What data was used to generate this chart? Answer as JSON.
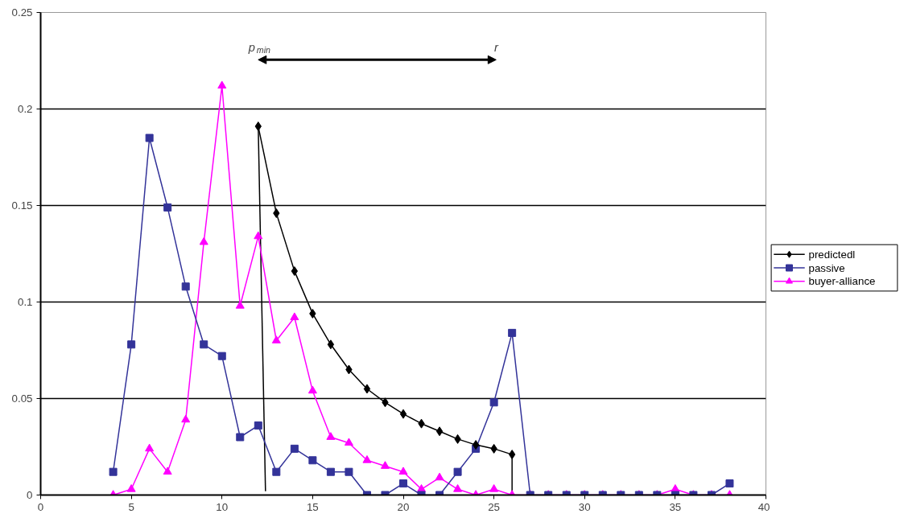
{
  "chart_data": {
    "type": "line",
    "xlim": [
      0,
      40
    ],
    "xticks": [
      0,
      5,
      10,
      15,
      20,
      25,
      30,
      35,
      40
    ],
    "ylim": [
      0,
      0.25
    ],
    "yticks": [
      0,
      0.05,
      0.1,
      0.15,
      0.2,
      0.25
    ],
    "grid": "y",
    "legend": "right",
    "series": [
      {
        "name": "predictedl",
        "color": "#000000",
        "marker": "diamond",
        "x": [
          12,
          13,
          14,
          15,
          16,
          17,
          18,
          19,
          20,
          21,
          22,
          23,
          24,
          25,
          26
        ],
        "values": [
          0.191,
          0.146,
          0.116,
          0.094,
          0.078,
          0.065,
          0.055,
          0.048,
          0.042,
          0.037,
          0.033,
          0.029,
          0.026,
          0.024,
          0.021
        ]
      },
      {
        "name": "passive",
        "color": "#333399",
        "marker": "square",
        "x": [
          4,
          5,
          6,
          7,
          8,
          9,
          10,
          11,
          12,
          13,
          14,
          15,
          16,
          17,
          18,
          19,
          20,
          21,
          22,
          23,
          24,
          25,
          26,
          27,
          28,
          29,
          30,
          31,
          32,
          33,
          34,
          35,
          36,
          37,
          38
        ],
        "values": [
          0.012,
          0.078,
          0.185,
          0.149,
          0.108,
          0.078,
          0.072,
          0.03,
          0.036,
          0.012,
          0.024,
          0.018,
          0.012,
          0.012,
          0,
          0,
          0.006,
          0,
          0,
          0.012,
          0.024,
          0.048,
          0.084,
          0,
          0,
          0,
          0,
          0,
          0,
          0,
          0,
          0,
          0,
          0,
          0.006
        ]
      },
      {
        "name": "buyer-alliance",
        "color": "#ff00ff",
        "marker": "triangle",
        "x": [
          4,
          5,
          6,
          7,
          8,
          9,
          10,
          11,
          12,
          13,
          14,
          15,
          16,
          17,
          18,
          19,
          20,
          21,
          22,
          23,
          24,
          25,
          26,
          27,
          28,
          29,
          30,
          31,
          32,
          33,
          34,
          35,
          36,
          37,
          38
        ],
        "values": [
          0,
          0.003,
          0.024,
          0.012,
          0.039,
          0.131,
          0.212,
          0.098,
          0.134,
          0.08,
          0.092,
          0.054,
          0.03,
          0.027,
          0.018,
          0.015,
          0.012,
          0.003,
          0.009,
          0.003,
          0,
          0.003,
          0,
          0,
          0,
          0,
          0,
          0,
          0,
          0,
          0,
          0.003,
          0,
          0,
          0
        ]
      },
      {
        "color": "#000000",
        "marker": "none",
        "x": [
          12,
          12.4
        ],
        "values": [
          0.191,
          0.002
        ]
      },
      {
        "color": "#000000",
        "marker": "none",
        "x": [
          26,
          26
        ],
        "values": [
          0.021,
          0
        ]
      }
    ],
    "annotations": [
      "p$_{min}$",
      "r"
    ]
  }
}
